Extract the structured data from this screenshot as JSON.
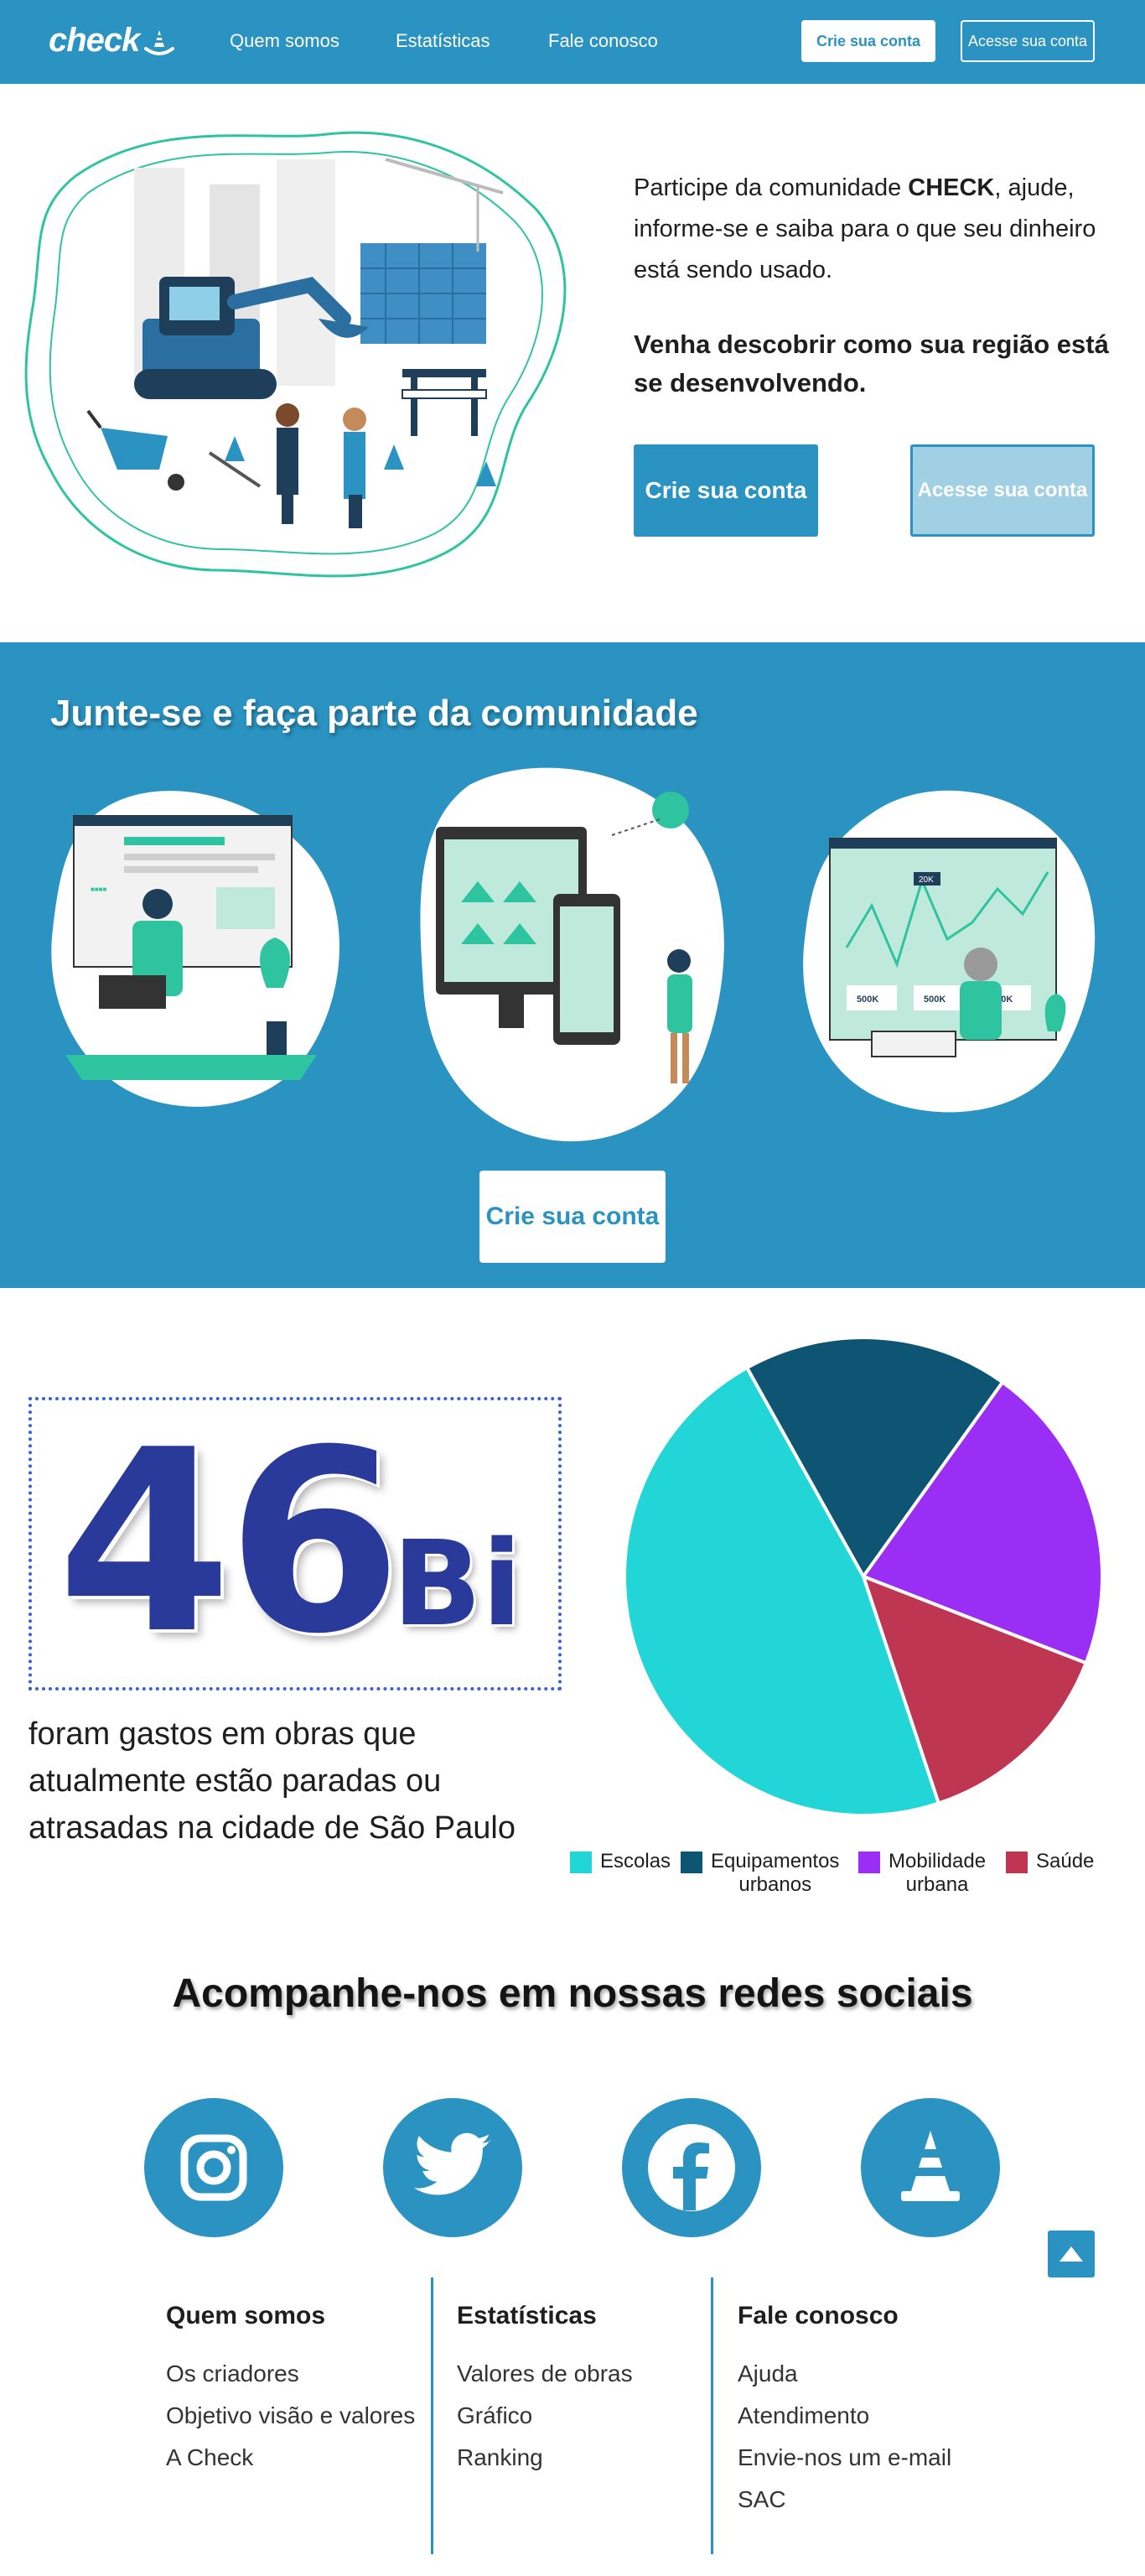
{
  "nav": {
    "logo_text": "check",
    "links": [
      "Quem somos",
      "Estatísticas",
      "Fale conosco"
    ],
    "signup_label": "Crie sua conta",
    "login_label": "Acesse sua conta"
  },
  "hero": {
    "text_pre": "Participe da comunidade ",
    "text_brand": "CHECK",
    "text_post": ", ajude, informe-se e saiba para o que seu dinheiro está sendo usado.",
    "text2": "Venha descobrir como sua região está se desenvolvendo.",
    "signup_label": "Crie sua conta",
    "login_label": "Acesse sua conta"
  },
  "community": {
    "title": "Junte-se e faça parte da comunidade",
    "cta_label": "Crie sua conta",
    "stat_labels": [
      "500K",
      "500K",
      "500K"
    ],
    "chart_badge": "20K"
  },
  "stats": {
    "number": "46",
    "unit": "Bi",
    "caption": "foram gastos em obras que atualmente estão paradas ou atrasadas na cidade de São Paulo"
  },
  "chart_data": {
    "type": "pie",
    "title": "",
    "legend_position": "bottom",
    "categories": [
      "Escolas",
      "Equipamentos urbanos",
      "Mobilidade urbana",
      "Saúde"
    ],
    "values": [
      47,
      18,
      21,
      14
    ],
    "colors": [
      "#22d6d8",
      "#0e5574",
      "#9b2ef5",
      "#bf3653"
    ],
    "legend_lines": [
      [
        "Escolas"
      ],
      [
        "Equipamentos",
        "urbanos"
      ],
      [
        "Mobilidade",
        "urbana"
      ],
      [
        "Saúde"
      ]
    ]
  },
  "social": {
    "title": "Acompanhe-nos em nossas redes sociais",
    "icons": [
      "instagram-icon",
      "twitter-icon",
      "facebook-icon",
      "cone-icon"
    ]
  },
  "footer": {
    "columns": [
      {
        "title": "Quem somos",
        "links": [
          "Os criadores",
          "Objetivo visão e valores",
          "A Check"
        ]
      },
      {
        "title": "Estatísticas",
        "links": [
          "Valores de obras",
          "Gráfico",
          "Ranking"
        ]
      },
      {
        "title": "Fale conosco",
        "links": [
          "Ajuda",
          "Atendimento",
          "Envie-nos um e-mail",
          "SAC"
        ]
      }
    ]
  },
  "colors": {
    "primary": "#2a93c1",
    "number": "#2a3a9a",
    "teal": "#2ec4a0"
  }
}
